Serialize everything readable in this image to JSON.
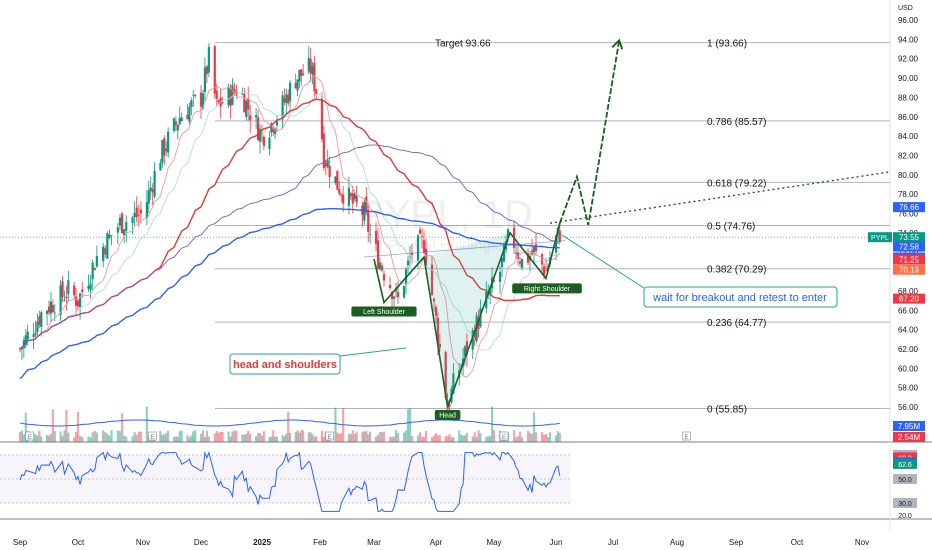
{
  "chart_data": {
    "type": "candlestick",
    "symbol": "PYPL",
    "watermark_symbol": "PYPL, 1D",
    "watermark_name": "PayPal Holdings,",
    "currency": "USD",
    "y_ticks": [
      96,
      94,
      92,
      90,
      88,
      86,
      84,
      82,
      80,
      78,
      76,
      74,
      72,
      70,
      68,
      66,
      64,
      62,
      60,
      58,
      56
    ],
    "x_ticks": [
      "Sep",
      "Oct",
      "Nov",
      "Dec",
      "2025",
      "Feb",
      "Mar",
      "Apr",
      "May",
      "Jun",
      "Jul",
      "Aug",
      "Sep",
      "Oct",
      "Nov"
    ],
    "ylim": [
      54,
      97.5
    ],
    "fib_levels": [
      {
        "ratio": "1",
        "price": 93.66,
        "label": "1 (93.66)"
      },
      {
        "ratio": "0.786",
        "price": 85.57,
        "label": "0.786 (85.57)"
      },
      {
        "ratio": "0.618",
        "price": 79.22,
        "label": "0.618 (79.22)"
      },
      {
        "ratio": "0.5",
        "price": 74.76,
        "label": "0.5 (74.76)"
      },
      {
        "ratio": "0.382",
        "price": 70.29,
        "label": "0.382 (70.29)"
      },
      {
        "ratio": "0.236",
        "price": 64.77,
        "label": "0.236 (64.77)"
      },
      {
        "ratio": "0",
        "price": 55.85,
        "label": "0 (55.85)"
      }
    ],
    "target_label": "Target 93.66",
    "annotations": {
      "pattern": "head and shoulders",
      "entry_note": "wait for breakout and retest to enter",
      "left_shoulder": "Left Shoulder",
      "head": "Head",
      "right_shoulder": "Right Shoulder"
    },
    "price_badges": [
      {
        "text": "76.66",
        "price": 76.66,
        "color": "#2962ff"
      },
      {
        "text": "73.55",
        "price": 73.55,
        "color": "#089981"
      },
      {
        "text": "03:05:30",
        "price": 73.55,
        "color": "#089981"
      },
      {
        "text": "72.58",
        "price": 72.58,
        "color": "#2962ff"
      },
      {
        "text": "71.45",
        "price": 71.45,
        "color": "#2962ff"
      },
      {
        "text": "71.25",
        "price": 71.25,
        "color": "#f23645"
      },
      {
        "text": "70.19",
        "price": 70.19,
        "color": "#ff7043"
      },
      {
        "text": "67.20",
        "price": 67.2,
        "color": "#f23645"
      }
    ],
    "symbol_tag": "PYPL",
    "volume_badges": [
      {
        "text": "7.95M",
        "color": "#2962ff"
      },
      {
        "text": "2.54M",
        "color": "#f23645"
      }
    ],
    "rsi_ticks": [
      70.0,
      50.0,
      30.0,
      20.0
    ],
    "rsi_badges": [
      {
        "text": "70.0",
        "value": 70.0,
        "color": "#b2b5be"
      },
      {
        "text": "68.0",
        "value": 68.0,
        "color": "#f23645"
      },
      {
        "text": "63.9",
        "value": 63.9,
        "color": "#2962ff"
      },
      {
        "text": "62.6",
        "value": 62.6,
        "color": "#089981"
      },
      {
        "text": "50.0",
        "value": 50.0,
        "color": "#b2b5be"
      },
      {
        "text": "30.0",
        "value": 30.0,
        "color": "#b2b5be"
      }
    ],
    "colors": {
      "up": "#089981",
      "down": "#f23645",
      "ma_blue": "#2962ff",
      "fib": "#787b86"
    }
  }
}
